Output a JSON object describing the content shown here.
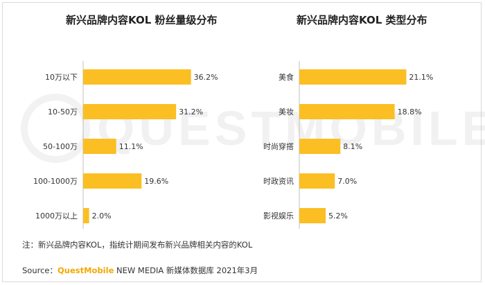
{
  "chart_data": [
    {
      "type": "bar",
      "orientation": "horizontal",
      "title": "新兴品牌内容KOL 粉丝量级分布",
      "categories": [
        "10万以下",
        "10-50万",
        "50-100万",
        "100-1000万",
        "1000万以上"
      ],
      "values": [
        36.2,
        31.2,
        11.1,
        19.6,
        2.0
      ],
      "value_labels": [
        "36.2%",
        "31.2%",
        "11.1%",
        "19.6%",
        "2.0%"
      ],
      "unit": "%",
      "xlim": [
        0,
        40
      ],
      "color": "#FBBF24",
      "grid": false
    },
    {
      "type": "bar",
      "orientation": "horizontal",
      "title": "新兴品牌内容KOL 类型分布",
      "categories": [
        "美食",
        "美妆",
        "时尚穿搭",
        "时政资讯",
        "影视娱乐"
      ],
      "values": [
        21.1,
        18.8,
        8.1,
        7.0,
        5.2
      ],
      "value_labels": [
        "21.1%",
        "18.8%",
        "8.1%",
        "7.0%",
        "5.2%"
      ],
      "unit": "%",
      "xlim": [
        0,
        23.5
      ],
      "color": "#FBBF24",
      "grid": false
    }
  ],
  "watermark": {
    "text": "QUESTMOBILE"
  },
  "footer": {
    "note": "注：新兴品牌内容KOL，指统计期间发布新兴品牌相关内容的KOL",
    "source_prefix": "Source：",
    "source_brand": "QuestMobile",
    "source_rest": " NEW MEDIA 新媒体数据库 2021年3月"
  },
  "colors": {
    "bar": "#FBBF24",
    "brand": "#F2A900"
  }
}
